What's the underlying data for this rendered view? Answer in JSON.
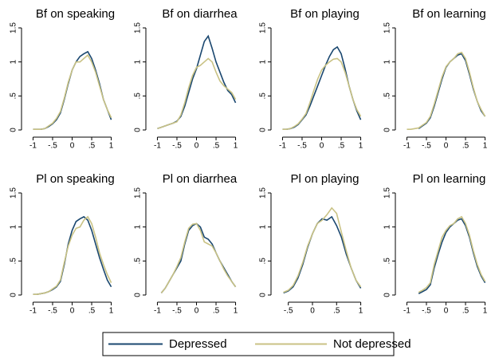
{
  "chart_data": [
    {
      "type": "line",
      "title": "Bf on speaking",
      "x": [
        -1,
        -0.9,
        -0.8,
        -0.7,
        -0.6,
        -0.5,
        -0.4,
        -0.3,
        -0.2,
        -0.1,
        0,
        0.1,
        0.2,
        0.3,
        0.4,
        0.5,
        0.6,
        0.7,
        0.8,
        0.9,
        1
      ],
      "series": [
        {
          "name": "Depressed",
          "color": "#1a476f",
          "values": [
            0.01,
            0.01,
            0.01,
            0.02,
            0.05,
            0.09,
            0.15,
            0.25,
            0.45,
            0.68,
            0.88,
            1.0,
            1.08,
            1.12,
            1.15,
            1.05,
            0.88,
            0.68,
            0.45,
            0.3,
            0.15
          ]
        },
        {
          "name": "Not depressed",
          "color": "#c9c284",
          "values": [
            0.01,
            0.01,
            0.01,
            0.02,
            0.06,
            0.1,
            0.17,
            0.27,
            0.47,
            0.7,
            0.88,
            1.0,
            1.0,
            1.05,
            1.1,
            1.0,
            0.85,
            0.65,
            0.45,
            0.3,
            0.18
          ]
        }
      ],
      "xlim": [
        -1.05,
        1.05
      ],
      "xticks": [
        -1,
        {
          "value": -0.5,
          "label": "-.5"
        },
        0,
        {
          "value": 0.5,
          "label": ".5"
        },
        1
      ],
      "ylim": [
        0,
        1.5
      ],
      "yticks": [
        0,
        {
          "value": 0.5,
          "label": ".5"
        },
        1,
        {
          "value": 1.5,
          "label": "1.5"
        }
      ]
    },
    {
      "type": "line",
      "title": "Bf on diarrhea",
      "x": [
        -1,
        -0.9,
        -0.8,
        -0.7,
        -0.6,
        -0.5,
        -0.4,
        -0.3,
        -0.2,
        -0.1,
        0,
        0.1,
        0.2,
        0.3,
        0.4,
        0.5,
        0.6,
        0.7,
        0.8,
        0.9,
        1
      ],
      "series": [
        {
          "name": "Depressed",
          "color": "#1a476f",
          "values": [
            0.02,
            0.04,
            0.06,
            0.08,
            0.1,
            0.13,
            0.2,
            0.35,
            0.55,
            0.75,
            0.9,
            1.1,
            1.3,
            1.38,
            1.2,
            1.0,
            0.85,
            0.7,
            0.58,
            0.52,
            0.4
          ]
        },
        {
          "name": "Not depressed",
          "color": "#c9c284",
          "values": [
            0.02,
            0.04,
            0.06,
            0.08,
            0.1,
            0.12,
            0.22,
            0.4,
            0.62,
            0.8,
            0.92,
            0.95,
            1.0,
            1.05,
            1.0,
            0.85,
            0.72,
            0.65,
            0.6,
            0.55,
            0.45
          ]
        }
      ],
      "xlim": [
        -1.05,
        1.05
      ],
      "xticks": [
        -1,
        {
          "value": -0.5,
          "label": "-.5"
        },
        0,
        {
          "value": 0.5,
          "label": ".5"
        },
        1
      ],
      "ylim": [
        0,
        1.5
      ],
      "yticks": [
        0,
        {
          "value": 0.5,
          "label": ".5"
        },
        1,
        {
          "value": 1.5,
          "label": "1.5"
        }
      ]
    },
    {
      "type": "line",
      "title": "Bf on playing",
      "x": [
        -1,
        -0.9,
        -0.8,
        -0.7,
        -0.6,
        -0.5,
        -0.4,
        -0.3,
        -0.2,
        -0.1,
        0,
        0.1,
        0.2,
        0.3,
        0.4,
        0.5,
        0.6,
        0.7,
        0.8,
        0.9,
        1
      ],
      "series": [
        {
          "name": "Depressed",
          "color": "#1a476f",
          "values": [
            0.01,
            0.01,
            0.02,
            0.04,
            0.08,
            0.15,
            0.22,
            0.35,
            0.5,
            0.65,
            0.8,
            0.95,
            1.08,
            1.18,
            1.22,
            1.12,
            0.9,
            0.65,
            0.45,
            0.28,
            0.15
          ]
        },
        {
          "name": "Not depressed",
          "color": "#c9c284",
          "values": [
            0.01,
            0.01,
            0.02,
            0.05,
            0.09,
            0.16,
            0.24,
            0.4,
            0.58,
            0.75,
            0.88,
            0.95,
            1.0,
            1.04,
            1.05,
            1.0,
            0.85,
            0.65,
            0.45,
            0.3,
            0.2
          ]
        }
      ],
      "xlim": [
        -1.05,
        1.05
      ],
      "xticks": [
        -1,
        {
          "value": -0.5,
          "label": "-.5"
        },
        0,
        {
          "value": 0.5,
          "label": ".5"
        },
        1
      ],
      "ylim": [
        0,
        1.5
      ],
      "yticks": [
        0,
        {
          "value": 0.5,
          "label": ".5"
        },
        1,
        {
          "value": 1.5,
          "label": "1.5"
        }
      ]
    },
    {
      "type": "line",
      "title": "Bf on learning",
      "x": [
        -1,
        -0.9,
        -0.8,
        -0.7,
        -0.6,
        -0.5,
        -0.4,
        -0.3,
        -0.2,
        -0.1,
        0,
        0.1,
        0.2,
        0.3,
        0.4,
        0.5,
        0.6,
        0.7,
        0.8,
        0.9,
        1
      ],
      "series": [
        {
          "name": "Depressed",
          "color": "#1a476f",
          "values": [
            null,
            null,
            null,
            0.02,
            0.06,
            0.1,
            0.18,
            0.35,
            0.55,
            0.75,
            0.92,
            1.0,
            1.05,
            1.1,
            1.12,
            1.02,
            0.82,
            0.6,
            0.42,
            0.28,
            0.2
          ]
        },
        {
          "name": "Not depressed",
          "color": "#c9c284",
          "values": [
            0.01,
            0.01,
            0.02,
            0.03,
            0.07,
            0.11,
            0.2,
            0.38,
            0.58,
            0.78,
            0.93,
            1.0,
            1.05,
            1.12,
            1.14,
            1.05,
            0.85,
            0.62,
            0.42,
            0.3,
            0.2
          ]
        }
      ],
      "xlim": [
        -1.05,
        1.05
      ],
      "xticks": [
        -1,
        {
          "value": -0.5,
          "label": "-.5"
        },
        0,
        {
          "value": 0.5,
          "label": ".5"
        },
        1
      ],
      "ylim": [
        0,
        1.5
      ],
      "yticks": [
        0,
        {
          "value": 0.5,
          "label": ".5"
        },
        1,
        {
          "value": 1.5,
          "label": "1.5"
        }
      ]
    },
    {
      "type": "line",
      "title": "Pl on speaking",
      "x": [
        -1,
        -0.9,
        -0.8,
        -0.7,
        -0.6,
        -0.5,
        -0.4,
        -0.3,
        -0.2,
        -0.1,
        0,
        0.1,
        0.2,
        0.3,
        0.4,
        0.5,
        0.6,
        0.7,
        0.8,
        0.9,
        1
      ],
      "series": [
        {
          "name": "Depressed",
          "color": "#1a476f",
          "values": [
            0.01,
            0.01,
            0.02,
            0.03,
            0.05,
            0.08,
            0.12,
            0.2,
            0.45,
            0.75,
            0.95,
            1.08,
            1.12,
            1.15,
            1.1,
            0.95,
            0.75,
            0.55,
            0.38,
            0.22,
            0.12
          ]
        },
        {
          "name": "Not depressed",
          "color": "#c9c284",
          "values": [
            0.01,
            0.01,
            0.02,
            0.03,
            0.05,
            0.09,
            0.13,
            0.22,
            0.48,
            0.72,
            0.88,
            0.98,
            1.0,
            1.1,
            1.15,
            1.05,
            0.85,
            0.62,
            0.45,
            0.3,
            0.18
          ]
        }
      ],
      "xlim": [
        -1.05,
        1.05
      ],
      "xticks": [
        -1,
        {
          "value": -0.5,
          "label": "-.5"
        },
        0,
        {
          "value": 0.5,
          "label": ".5"
        },
        1
      ],
      "ylim": [
        0,
        1.5
      ],
      "yticks": [
        0,
        {
          "value": 0.5,
          "label": ".5"
        },
        1,
        {
          "value": 1.5,
          "label": "1.5"
        }
      ]
    },
    {
      "type": "line",
      "title": "Pl on diarrhea",
      "x": [
        -0.9,
        -0.8,
        -0.7,
        -0.6,
        -0.5,
        -0.4,
        -0.3,
        -0.2,
        -0.1,
        0,
        0.1,
        0.2,
        0.3,
        0.4,
        0.5,
        0.6,
        0.7,
        0.8,
        0.9,
        1
      ],
      "series": [
        {
          "name": "Depressed",
          "color": "#1a476f",
          "values": [
            0.03,
            0.1,
            0.2,
            0.3,
            0.4,
            0.5,
            0.75,
            0.95,
            1.02,
            1.05,
            1.0,
            0.85,
            0.82,
            0.75,
            0.62,
            0.5,
            0.4,
            0.3,
            0.2,
            0.12
          ]
        },
        {
          "name": "Not depressed",
          "color": "#c9c284",
          "values": [
            0.03,
            0.1,
            0.2,
            0.3,
            0.42,
            0.55,
            0.78,
            0.98,
            1.04,
            1.05,
            0.95,
            0.78,
            0.75,
            0.72,
            0.62,
            0.5,
            0.38,
            0.28,
            0.2,
            0.12
          ]
        }
      ],
      "xlim": [
        -1.05,
        1.05
      ],
      "xticks": [
        -1,
        {
          "value": -0.5,
          "label": "-.5"
        },
        0,
        {
          "value": 0.5,
          "label": ".5"
        },
        1
      ],
      "ylim": [
        0,
        1.5
      ],
      "yticks": [
        0,
        {
          "value": 0.5,
          "label": ".5"
        },
        1,
        {
          "value": 1.5,
          "label": "1.5"
        }
      ]
    },
    {
      "type": "line",
      "title": "Pl on playing",
      "x": [
        -0.6,
        -0.5,
        -0.4,
        -0.3,
        -0.2,
        -0.1,
        0,
        0.1,
        0.2,
        0.3,
        0.4,
        0.5,
        0.6,
        0.7,
        0.8,
        0.9,
        1
      ],
      "series": [
        {
          "name": "Depressed",
          "color": "#1a476f",
          "values": [
            0.03,
            0.06,
            0.12,
            0.25,
            0.45,
            0.7,
            0.9,
            1.05,
            1.12,
            1.1,
            1.15,
            1.02,
            0.85,
            0.6,
            0.4,
            0.22,
            0.1
          ]
        },
        {
          "name": "Not depressed",
          "color": "#c9c284",
          "values": [
            0.04,
            0.07,
            0.14,
            0.28,
            0.48,
            0.72,
            0.9,
            1.05,
            1.1,
            1.18,
            1.28,
            1.2,
            0.92,
            0.65,
            0.4,
            0.22,
            0.12
          ]
        }
      ],
      "xlim": [
        -0.66,
        1.04
      ],
      "xticks": [
        {
          "value": -0.5,
          "label": "-.5"
        },
        0,
        {
          "value": 0.5,
          "label": ".5"
        },
        1
      ],
      "ylim": [
        0,
        1.5
      ],
      "yticks": [
        0,
        {
          "value": 0.5,
          "label": ".5"
        },
        1,
        {
          "value": 1.5,
          "label": "1.5"
        }
      ]
    },
    {
      "type": "line",
      "title": "Pl on learning",
      "x": [
        -0.7,
        -0.6,
        -0.5,
        -0.4,
        -0.3,
        -0.2,
        -0.1,
        0,
        0.1,
        0.2,
        0.3,
        0.4,
        0.5,
        0.6,
        0.7,
        0.8,
        0.9,
        1
      ],
      "series": [
        {
          "name": "Depressed",
          "color": "#1a476f",
          "values": [
            0.02,
            0.05,
            0.08,
            0.15,
            0.4,
            0.6,
            0.78,
            0.92,
            1.0,
            1.05,
            1.1,
            1.12,
            1.02,
            0.85,
            0.62,
            0.42,
            0.28,
            0.18
          ]
        },
        {
          "name": "Not depressed",
          "color": "#c9c284",
          "values": [
            0.04,
            0.07,
            0.11,
            0.18,
            0.45,
            0.65,
            0.85,
            0.95,
            1.02,
            1.05,
            1.12,
            1.15,
            1.05,
            0.88,
            0.65,
            0.45,
            0.3,
            0.2
          ]
        }
      ],
      "xlim": [
        -1.05,
        1.05
      ],
      "xticks": [
        -1,
        {
          "value": -0.5,
          "label": "-.5"
        },
        0,
        {
          "value": 0.5,
          "label": ".5"
        },
        1
      ],
      "ylim": [
        0,
        1.5
      ],
      "yticks": [
        0,
        {
          "value": 0.5,
          "label": ".5"
        },
        1,
        {
          "value": 1.5,
          "label": "1.5"
        }
      ]
    }
  ]
}
